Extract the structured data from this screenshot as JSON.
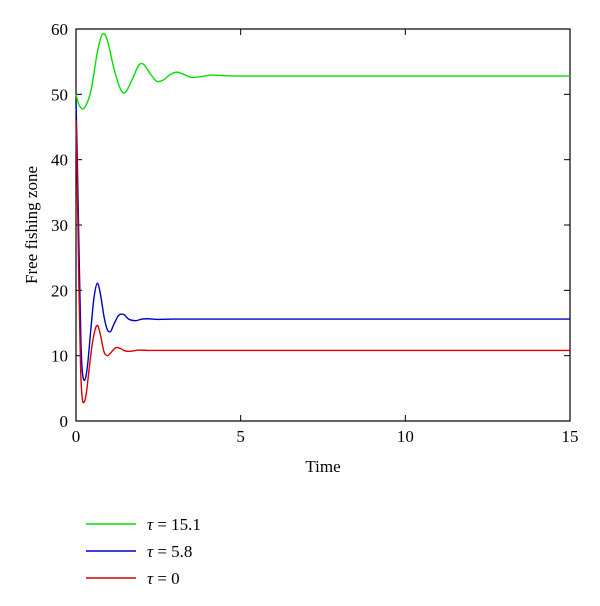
{
  "chart_data": {
    "type": "line",
    "title": "",
    "xlabel": "Time",
    "ylabel": "Free fishing zone",
    "xlim": [
      0,
      15
    ],
    "ylim": [
      0,
      60
    ],
    "xticks": [
      0,
      5,
      10,
      15
    ],
    "yticks": [
      0,
      10,
      20,
      30,
      40,
      50,
      60
    ],
    "grid": false,
    "legend_position": "below plot, left",
    "series": [
      {
        "name": "τ = 15.1",
        "legend_symbol": "τ",
        "legend_value": "= 15.1",
        "color": "#00e000",
        "x": [
          0,
          0.1,
          0.25,
          0.45,
          0.65,
          0.8,
          0.95,
          1.15,
          1.35,
          1.5,
          1.7,
          1.9,
          2.05,
          2.25,
          2.45,
          2.65,
          2.85,
          3.05,
          3.25,
          3.5,
          3.8,
          4.1,
          4.5,
          5,
          6,
          8,
          10,
          12,
          15
        ],
        "y": [
          50,
          48.3,
          47.9,
          50.5,
          56.5,
          59.2,
          58.3,
          54.0,
          50.8,
          50.3,
          52.2,
          54.4,
          54.6,
          53.2,
          52.0,
          52.2,
          53.0,
          53.4,
          53.1,
          52.6,
          52.7,
          52.95,
          52.85,
          52.8,
          52.8,
          52.8,
          52.8,
          52.8,
          52.8
        ]
      },
      {
        "name": "τ = 5.8",
        "legend_symbol": "τ",
        "legend_value": "= 5.8",
        "color": "#0000c8",
        "x": [
          0,
          0.04,
          0.1,
          0.15,
          0.2,
          0.27,
          0.35,
          0.45,
          0.55,
          0.65,
          0.75,
          0.85,
          0.95,
          1.05,
          1.15,
          1.3,
          1.45,
          1.6,
          1.8,
          2.0,
          2.2,
          2.5,
          3,
          5,
          10,
          15
        ],
        "y": [
          49,
          40,
          24,
          12,
          7.2,
          6.3,
          8.5,
          14.0,
          19.0,
          21.1,
          19.2,
          16.0,
          14.0,
          13.7,
          14.8,
          16.2,
          16.3,
          15.6,
          15.35,
          15.6,
          15.65,
          15.55,
          15.6,
          15.6,
          15.6,
          15.6
        ]
      },
      {
        "name": "τ = 0",
        "legend_symbol": "τ",
        "legend_value": "= 0",
        "color": "#d80000",
        "x": [
          0,
          0.04,
          0.09,
          0.14,
          0.19,
          0.25,
          0.32,
          0.4,
          0.5,
          0.6,
          0.67,
          0.75,
          0.85,
          0.95,
          1.05,
          1.2,
          1.35,
          1.5,
          1.7,
          1.9,
          2.2,
          2.6,
          3,
          5,
          10,
          15
        ],
        "y": [
          46,
          36,
          20,
          8,
          3.5,
          2.9,
          4.5,
          8.0,
          12.0,
          14.3,
          14.5,
          13.0,
          10.6,
          10.0,
          10.4,
          11.2,
          11.1,
          10.7,
          10.7,
          10.85,
          10.8,
          10.8,
          10.8,
          10.8,
          10.8,
          10.8
        ]
      }
    ]
  }
}
